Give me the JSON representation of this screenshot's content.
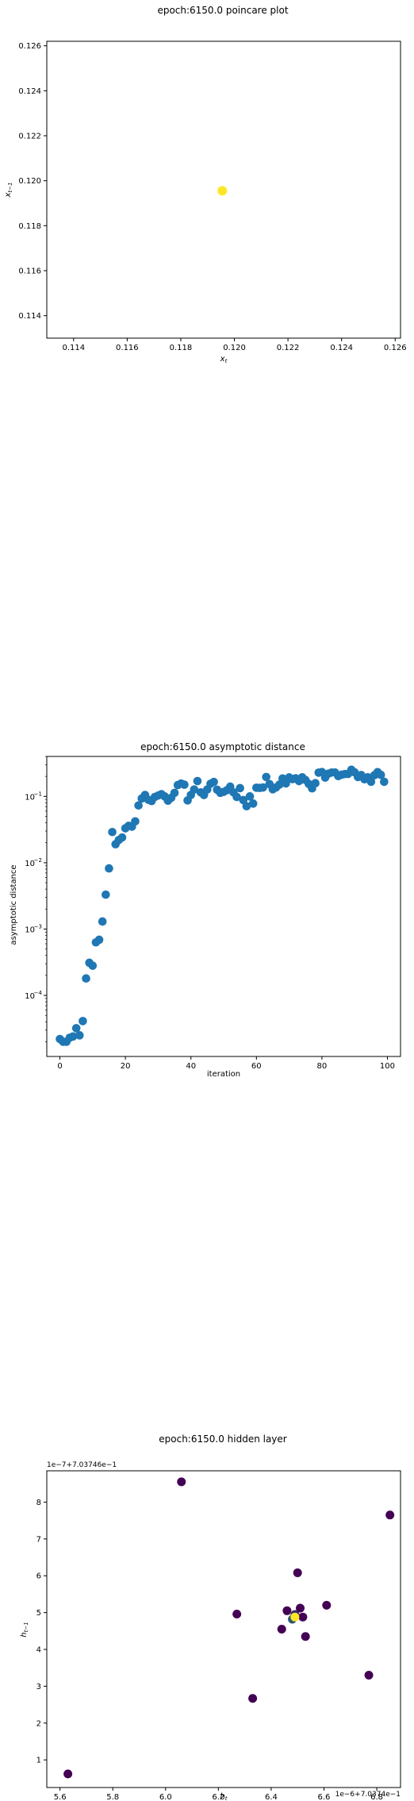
{
  "chart_data": [
    {
      "type": "scatter",
      "title": "epoch:6150.0 poincare plot",
      "xlabel": "x_t",
      "ylabel": "x_{t-1}",
      "xlim": [
        0.113,
        0.1262
      ],
      "ylim": [
        0.113,
        0.1262
      ],
      "xticks": [
        0.114,
        0.116,
        0.118,
        0.12,
        0.122,
        0.124,
        0.126
      ],
      "xtick_labels": [
        "0.114",
        "0.116",
        "0.118",
        "0.120",
        "0.122",
        "0.124",
        "0.126"
      ],
      "yticks": [
        0.114,
        0.116,
        0.118,
        0.12,
        0.122,
        0.124,
        0.126
      ],
      "ytick_labels": [
        "0.114",
        "0.116",
        "0.118",
        "0.120",
        "0.122",
        "0.124",
        "0.126"
      ],
      "grid": false,
      "colors": {
        "point": "#fde725"
      },
      "points": [
        {
          "x": 0.11955,
          "y": 0.11955
        }
      ]
    },
    {
      "type": "scatter",
      "title": "epoch:6150.0 asymptotic distance",
      "xlabel": "iteration",
      "ylabel": "asymptotic distance",
      "y_scale": "log",
      "xlim": [
        -4,
        104
      ],
      "ylim": [
        1.2e-05,
        0.4
      ],
      "xticks": [
        0,
        20,
        40,
        60,
        80,
        100
      ],
      "xtick_labels": [
        "0",
        "20",
        "40",
        "60",
        "80",
        "100"
      ],
      "yticks": [
        0.0001,
        0.001,
        0.01,
        0.1
      ],
      "ytick_labels": [
        "10^-4",
        "10^-3",
        "10^-2",
        "10^-1"
      ],
      "grid": false,
      "colors": {
        "point": "#1f77b4"
      },
      "x": [
        0,
        1,
        2,
        3,
        4,
        5,
        6,
        7,
        8,
        9,
        10,
        11,
        12,
        13,
        14,
        15,
        16,
        17,
        18,
        19,
        20,
        21,
        22,
        23,
        24,
        25,
        26,
        27,
        28,
        29,
        30,
        31,
        32,
        33,
        34,
        35,
        36,
        37,
        38,
        39,
        40,
        41,
        42,
        43,
        44,
        45,
        46,
        47,
        48,
        49,
        50,
        51,
        52,
        53,
        54,
        55,
        56,
        57,
        58,
        59,
        60,
        61,
        62,
        63,
        64,
        65,
        66,
        67,
        68,
        69,
        70,
        71,
        72,
        73,
        74,
        75,
        76,
        77,
        78,
        79,
        80,
        81,
        82,
        83,
        84,
        85,
        86,
        87,
        88,
        89,
        90,
        91,
        92,
        93,
        94,
        95,
        96,
        97,
        98,
        99
      ],
      "y": [
        2.2e-05,
        2e-05,
        2e-05,
        2.3e-05,
        2.4e-05,
        3.2e-05,
        2.5e-05,
        4.1e-05,
        0.00018,
        0.00031,
        0.00028,
        0.00063,
        0.00069,
        0.0013,
        0.0033,
        0.0082,
        0.029,
        0.019,
        0.022,
        0.024,
        0.033,
        0.036,
        0.035,
        0.042,
        0.073,
        0.093,
        0.105,
        0.089,
        0.085,
        0.098,
        0.103,
        0.108,
        0.1,
        0.086,
        0.095,
        0.113,
        0.148,
        0.156,
        0.15,
        0.087,
        0.105,
        0.127,
        0.17,
        0.115,
        0.105,
        0.127,
        0.155,
        0.165,
        0.126,
        0.113,
        0.117,
        0.124,
        0.14,
        0.115,
        0.098,
        0.133,
        0.088,
        0.071,
        0.1,
        0.078,
        0.135,
        0.134,
        0.136,
        0.196,
        0.153,
        0.128,
        0.136,
        0.15,
        0.186,
        0.157,
        0.193,
        0.182,
        0.187,
        0.17,
        0.194,
        0.176,
        0.154,
        0.132,
        0.158,
        0.228,
        0.233,
        0.192,
        0.22,
        0.229,
        0.229,
        0.202,
        0.212,
        0.217,
        0.218,
        0.252,
        0.23,
        0.196,
        0.21,
        0.181,
        0.194,
        0.166,
        0.208,
        0.232,
        0.211,
        0.166
      ]
    },
    {
      "type": "scatter",
      "title": "epoch:6150.0 hidden layer",
      "xlabel": "h_t",
      "ylabel": "h_{t-1}",
      "x_offset_label": "1e−6+7.0374e−1",
      "y_offset_label": "1e−7+7.03746e−1",
      "xlim": [
        5.55,
        6.89
      ],
      "ylim": [
        0.25,
        8.85
      ],
      "xticks": [
        5.6,
        5.8,
        6.0,
        6.2,
        6.4,
        6.6,
        6.8
      ],
      "xtick_labels": [
        "5.6",
        "5.8",
        "6.0",
        "6.2",
        "6.4",
        "6.6",
        "6.8"
      ],
      "yticks": [
        1,
        2,
        3,
        4,
        5,
        6,
        7,
        8
      ],
      "ytick_labels": [
        "1",
        "2",
        "3",
        "4",
        "5",
        "6",
        "7",
        "8"
      ],
      "grid": false,
      "colors": {
        "early": "#440154",
        "late": "#fde725",
        "mid": "#21918c"
      },
      "points": [
        {
          "x": 5.63,
          "y": 0.62,
          "t": 0.0
        },
        {
          "x": 6.06,
          "y": 8.55,
          "t": 0.0
        },
        {
          "x": 6.85,
          "y": 7.65,
          "t": 0.0
        },
        {
          "x": 6.27,
          "y": 4.96,
          "t": 0.0
        },
        {
          "x": 6.33,
          "y": 2.67,
          "t": 0.0
        },
        {
          "x": 6.44,
          "y": 4.55,
          "t": 0.0
        },
        {
          "x": 6.46,
          "y": 5.05,
          "t": 0.0
        },
        {
          "x": 6.5,
          "y": 6.08,
          "t": 0.0
        },
        {
          "x": 6.51,
          "y": 5.12,
          "t": 0.0
        },
        {
          "x": 6.52,
          "y": 4.88,
          "t": 0.0
        },
        {
          "x": 6.53,
          "y": 4.35,
          "t": 0.0
        },
        {
          "x": 6.61,
          "y": 5.2,
          "t": 0.0
        },
        {
          "x": 6.77,
          "y": 3.3,
          "t": 0.0
        },
        {
          "x": 6.49,
          "y": 4.95,
          "t": 0.15
        },
        {
          "x": 6.48,
          "y": 4.82,
          "t": 0.3
        },
        {
          "x": 6.49,
          "y": 4.88,
          "t": 1.0
        }
      ]
    }
  ]
}
